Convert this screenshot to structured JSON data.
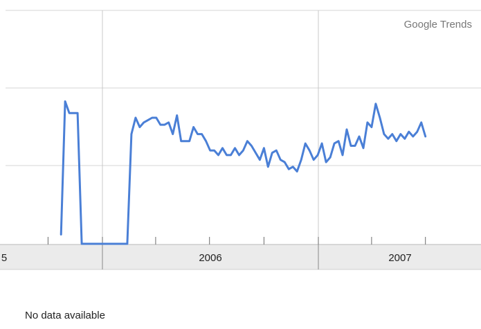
{
  "chart_data": {
    "type": "line",
    "title": "",
    "xlabel": "",
    "ylabel": "",
    "source_label": "Google Trends",
    "x_tick_labels": [
      "5",
      "2006",
      "2007"
    ],
    "ylim": [
      0,
      100
    ],
    "grid": true,
    "legend": "none",
    "series": [
      {
        "color": "#4a7fd6",
        "x": [
          "2005-10-23",
          "2005-10-30",
          "2005-11-06",
          "2005-11-13",
          "2005-11-20",
          "2005-11-27",
          "2005-12-04",
          "2005-12-11",
          "2005-12-18",
          "2005-12-25",
          "2006-01-01",
          "2006-01-08",
          "2006-01-15",
          "2006-01-22",
          "2006-01-29",
          "2006-02-05",
          "2006-02-12",
          "2006-02-19",
          "2006-02-26",
          "2006-03-05",
          "2006-03-12",
          "2006-03-19",
          "2006-03-26",
          "2006-04-02",
          "2006-04-09",
          "2006-04-16",
          "2006-04-23",
          "2006-04-30",
          "2006-05-07",
          "2006-05-14",
          "2006-05-21",
          "2006-05-28",
          "2006-06-04",
          "2006-06-11",
          "2006-06-18",
          "2006-06-25",
          "2006-07-02",
          "2006-07-09",
          "2006-07-16",
          "2006-07-23",
          "2006-07-30",
          "2006-08-06",
          "2006-08-13",
          "2006-08-20",
          "2006-08-27",
          "2006-09-03",
          "2006-09-10",
          "2006-09-17",
          "2006-09-24",
          "2006-10-01",
          "2006-10-08",
          "2006-10-15",
          "2006-10-22",
          "2006-10-29",
          "2006-11-05",
          "2006-11-12",
          "2006-11-19",
          "2006-11-26",
          "2006-12-03",
          "2006-12-10",
          "2006-12-17",
          "2006-12-24",
          "2006-12-31",
          "2007-01-07",
          "2007-01-14",
          "2007-01-21",
          "2007-01-28",
          "2007-02-04",
          "2007-02-11",
          "2007-02-18",
          "2007-02-25",
          "2007-03-04",
          "2007-03-11",
          "2007-03-18",
          "2007-03-25",
          "2007-04-01",
          "2007-04-08",
          "2007-04-15",
          "2007-04-22",
          "2007-04-29",
          "2007-05-06",
          "2007-05-13",
          "2007-05-20",
          "2007-05-27",
          "2007-06-03",
          "2007-06-10",
          "2007-06-17",
          "2007-06-24",
          "2007-07-01"
        ],
        "values": [
          4,
          61,
          56,
          56,
          56,
          0,
          0,
          0,
          0,
          0,
          0,
          0,
          0,
          0,
          0,
          0,
          0,
          47,
          54,
          50,
          52,
          53,
          54,
          54,
          51,
          51,
          52,
          47,
          55,
          44,
          44,
          44,
          50,
          47,
          47,
          44,
          40,
          40,
          38,
          41,
          38,
          38,
          41,
          38,
          40,
          44,
          42,
          39,
          36,
          41,
          33,
          39,
          40,
          36,
          35,
          32,
          33,
          31,
          36,
          43,
          40,
          36,
          38,
          43,
          35,
          37,
          43,
          44,
          38,
          49,
          42,
          42,
          46,
          41,
          52,
          50,
          60,
          54,
          47,
          45,
          47,
          44,
          47,
          45,
          48,
          46,
          48,
          52,
          46
        ]
      }
    ]
  },
  "status": {
    "message": "No data available"
  }
}
